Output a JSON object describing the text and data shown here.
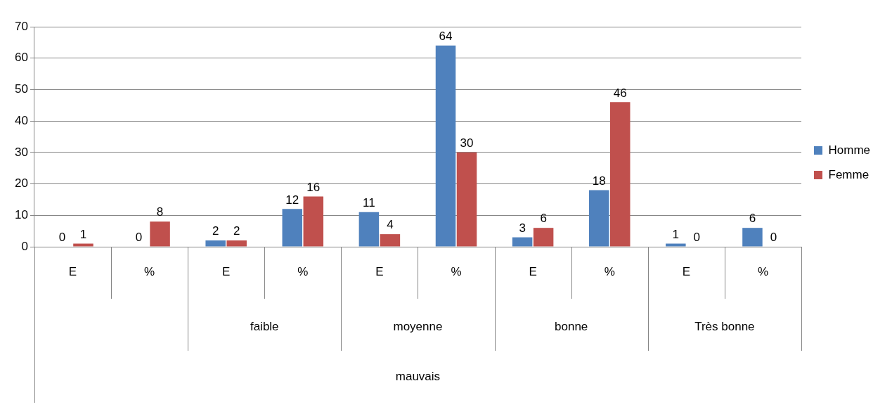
{
  "chart_data": {
    "type": "bar",
    "categories": [
      "E",
      "%",
      "E",
      "%",
      "E",
      "%",
      "E",
      "%",
      "E",
      "%"
    ],
    "series": [
      {
        "name": "Homme",
        "color": "#4f81bd",
        "values": [
          0,
          0,
          2,
          12,
          11,
          64,
          3,
          18,
          1,
          6
        ]
      },
      {
        "name": "Femme",
        "color": "#c0504d",
        "values": [
          1,
          8,
          2,
          16,
          4,
          30,
          6,
          46,
          0,
          0
        ]
      }
    ],
    "annotations": [
      "faible",
      "moyenne",
      "bonne",
      "Très bonne",
      "mauvais"
    ],
    "ylim": [
      0,
      70
    ],
    "yticks": [
      0,
      10,
      20,
      30,
      40,
      50,
      60,
      70
    ],
    "grid": "y",
    "legend": "right",
    "data_labels": true
  }
}
